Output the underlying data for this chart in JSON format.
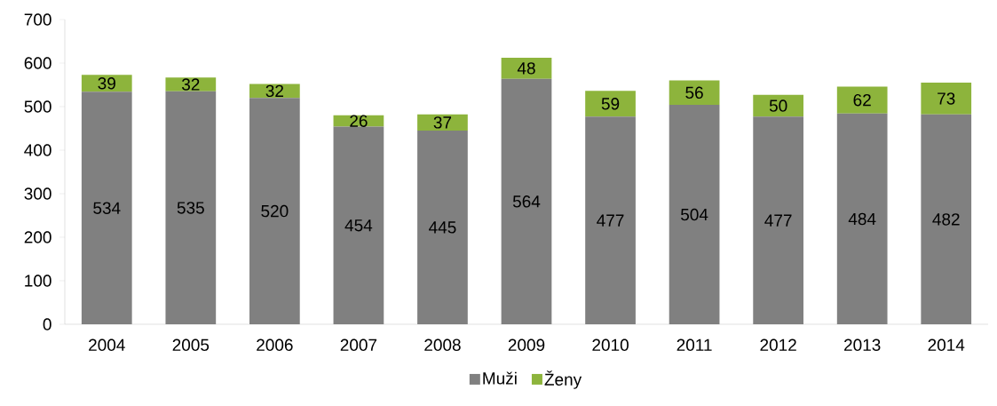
{
  "chart_data": {
    "type": "bar",
    "stacked": true,
    "data_labels": true,
    "legend": "bottom",
    "categories": [
      "2004",
      "2005",
      "2006",
      "2007",
      "2008",
      "2009",
      "2010",
      "2011",
      "2012",
      "2013",
      "2014"
    ],
    "ylim": [
      0,
      700
    ],
    "yticks": [
      0,
      100,
      200,
      300,
      400,
      500,
      600,
      700
    ],
    "series": [
      {
        "name": "Muži",
        "color": "#808080",
        "values": [
          534,
          535,
          520,
          454,
          445,
          564,
          477,
          504,
          477,
          484,
          482
        ]
      },
      {
        "name": "Ženy",
        "color": "#8db43c",
        "values": [
          39,
          32,
          32,
          26,
          37,
          48,
          59,
          56,
          50,
          62,
          73
        ]
      }
    ]
  }
}
